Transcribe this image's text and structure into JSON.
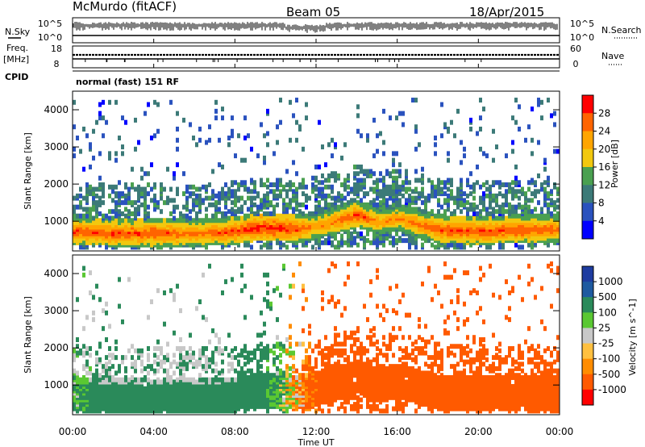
{
  "header": {
    "station": "McMurdo (fitACF)",
    "beam": "Beam 05",
    "date": "18/Apr/2015"
  },
  "aux_panels": {
    "nsky_label": "N.Sky",
    "nsearch_label": "N.Search",
    "noise_ticks_left": [
      "10^5",
      "10^0"
    ],
    "noise_ticks_right": [
      "10^5",
      "10^0"
    ],
    "freq_label_1": "Freq.",
    "freq_label_2": "[MHz]",
    "freq_ticks": [
      "18",
      "8"
    ],
    "nave_label": "Nave",
    "nave_ticks": [
      "60",
      "0"
    ],
    "cpid_label": "CPID",
    "cpid_value": "normal (fast) 151 RF"
  },
  "colors": {
    "power_scale": [
      "#0000ff",
      "#2a52be",
      "#3c7a78",
      "#4aa050",
      "#f2c80f",
      "#ffa500",
      "#ff6400",
      "#ff0000"
    ],
    "velocity_scale": [
      "#ff0000",
      "#ff5a00",
      "#ff8c00",
      "#ffc040",
      "#c8c8c8",
      "#5ac832",
      "#2a8a5a",
      "#1e5aa0",
      "#1e3ca0"
    ],
    "noise_sky": "#000000"
  },
  "chart_data": [
    {
      "type": "heatmap",
      "name": "power",
      "title": "",
      "xlabel": "",
      "ylabel": "Slant Range [km]",
      "xlim": [
        "00:00",
        "24:00"
      ],
      "ylim": [
        200,
        4500
      ],
      "y_ticks": [
        "1000",
        "2000",
        "3000",
        "4000"
      ],
      "x_ticks": [
        "00:00",
        "04:00",
        "08:00",
        "12:00",
        "16:00",
        "20:00",
        "00:00"
      ],
      "colorbar": {
        "label": "Power [dB]",
        "ticks": [
          "4",
          "8",
          "12",
          "16",
          "20",
          "24",
          "28"
        ],
        "range": [
          0,
          32
        ]
      },
      "profile": {
        "hours": [
          0,
          2,
          4,
          6,
          8,
          9,
          10,
          11,
          12,
          13,
          14,
          15,
          16,
          18,
          20,
          22,
          24
        ],
        "echo_center_km": [
          750,
          700,
          700,
          700,
          750,
          850,
          850,
          800,
          900,
          1050,
          1200,
          1000,
          1100,
          800,
          750,
          800,
          800
        ],
        "echo_peak_db": [
          28,
          28,
          28,
          26,
          28,
          30,
          30,
          28,
          24,
          26,
          28,
          24,
          24,
          28,
          28,
          28,
          26
        ]
      }
    },
    {
      "type": "heatmap",
      "name": "velocity",
      "title": "",
      "xlabel": "Time UT",
      "ylabel": "Slant Range [km]",
      "xlim": [
        "00:00",
        "24:00"
      ],
      "ylim": [
        200,
        4500
      ],
      "y_ticks": [
        "1000",
        "2000",
        "3000",
        "4000"
      ],
      "x_ticks": [
        "00:00",
        "04:00",
        "08:00",
        "12:00",
        "16:00",
        "20:00",
        "00:00"
      ],
      "colorbar": {
        "label": "Velocity [m s^-1]",
        "ticks": [
          "1000",
          "500",
          "100",
          "25",
          "-25",
          "-100",
          "-500",
          "-1000"
        ]
      },
      "profile": {
        "hours": [
          0,
          2,
          4,
          6,
          8,
          10,
          12,
          14,
          16,
          18,
          20,
          22,
          24
        ],
        "dominant_velocity_ms": [
          100,
          300,
          300,
          300,
          400,
          100,
          -200,
          -300,
          -300,
          -300,
          -300,
          -300,
          -300
        ]
      }
    }
  ]
}
